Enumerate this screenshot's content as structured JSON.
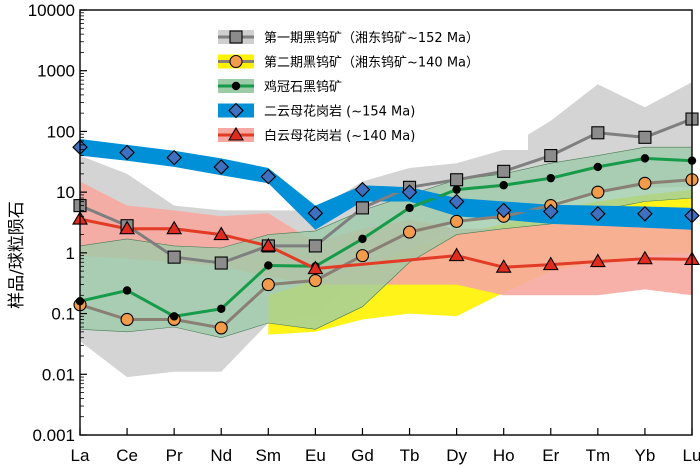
{
  "chart_data": {
    "type": "line",
    "ylabel": "样品/球粒陨石",
    "y_scale": "log",
    "ylim": [
      0.001,
      10000
    ],
    "y_ticks": [
      "0.001",
      "0.01",
      "0.1",
      "1",
      "10",
      "100",
      "1000",
      "10000"
    ],
    "y_tick_values": [
      0.001,
      0.01,
      0.1,
      1,
      10,
      100,
      1000,
      10000
    ],
    "categories": [
      "La",
      "Ce",
      "Pr",
      "Nd",
      "Sm",
      "Eu",
      "Gd",
      "Tb",
      "Dy",
      "Ho",
      "Er",
      "Tm",
      "Yb",
      "Lu"
    ],
    "legend_position": "top-center",
    "bands": [
      {
        "id": "grey",
        "color": "#cfcfcf",
        "lower": [
          0.035,
          0.009,
          0.011,
          0.011,
          0.07,
          0.09,
          0.6,
          1.0,
          3.5,
          5,
          7,
          10,
          12,
          12
        ],
        "upper": [
          40,
          20,
          6,
          5,
          5,
          5,
          15,
          25,
          30,
          50,
          150,
          600,
          250,
          650
        ]
      },
      {
        "id": "yellow",
        "color": "#fff200",
        "lower": [
          null,
          null,
          null,
          null,
          0.045,
          0.05,
          0.08,
          0.1,
          0.09,
          0.22,
          0.5,
          0.7,
          0.9,
          1.0
        ],
        "upper": [
          null,
          null,
          null,
          null,
          0.2,
          0.35,
          0.6,
          1.2,
          2,
          3,
          5,
          7,
          9,
          11
        ]
      },
      {
        "id": "red",
        "color": "#f7a8a0",
        "lower": [
          0.9,
          0.8,
          0.7,
          0.6,
          0.4,
          0.3,
          0.3,
          0.3,
          0.3,
          0.2,
          0.2,
          0.2,
          0.25,
          0.2
        ],
        "upper": [
          15,
          6,
          5,
          4,
          4.5,
          1.5,
          2.5,
          3.5,
          2.5,
          2.5,
          3,
          3.5,
          3,
          3
        ]
      },
      {
        "id": "green",
        "color": "#9ccba8",
        "lower": [
          0.055,
          0.05,
          0.06,
          0.04,
          0.07,
          0.055,
          0.13,
          0.7,
          2,
          2.5,
          3,
          5,
          7,
          8
        ],
        "upper": [
          1.3,
          1.7,
          1.3,
          1.2,
          2.0,
          2.3,
          5,
          9,
          16,
          20,
          30,
          40,
          55,
          55
        ]
      },
      {
        "id": "blue",
        "color": "#0090d8",
        "lower": [
          40,
          33,
          26,
          19,
          14,
          2.4,
          7,
          7,
          4,
          3.5,
          3,
          2.8,
          2.6,
          2.4
        ],
        "upper": [
          75,
          60,
          48,
          36,
          25,
          6,
          13,
          12,
          8,
          7,
          6.2,
          6,
          5.8,
          5.5
        ]
      }
    ],
    "series": [
      {
        "name": "第一期黑钨矿（湘东钨矿~152 Ma）",
        "marker": "square",
        "line_color": "#7f7f7f",
        "marker_fill": "#8c8c8c",
        "values": [
          6,
          2.8,
          0.85,
          0.68,
          1.3,
          1.3,
          5.5,
          12,
          16,
          22,
          40,
          95,
          80,
          160
        ]
      },
      {
        "name": "第二期黑钨矿（湘东钨矿~140 Ma）",
        "marker": "circle",
        "line_color": "#8a7f73",
        "marker_fill": "#f29b4a",
        "values": [
          0.14,
          0.08,
          0.08,
          0.058,
          0.3,
          0.35,
          0.9,
          2.2,
          3.3,
          4,
          6,
          10,
          14,
          16
        ]
      },
      {
        "name": "鸡冠石黑钨矿",
        "marker": "dot",
        "line_color": "#169b4a",
        "marker_fill": "#000000",
        "values": [
          0.16,
          0.24,
          0.09,
          0.12,
          0.62,
          0.6,
          1.7,
          5.5,
          11,
          13,
          17,
          26,
          36,
          33
        ]
      },
      {
        "name": "二云母花岗岩 (~154 Ma)",
        "marker": "diamond",
        "line_color": "#0090d8",
        "marker_fill": "#3f6fbf",
        "values": [
          55,
          45,
          37,
          26,
          18,
          4.5,
          11,
          10,
          7,
          5,
          4.8,
          4.4,
          4.4,
          4.1
        ]
      },
      {
        "name": "白云母花岗岩 (~140 Ma)",
        "marker": "triangle",
        "line_color": "#e23b26",
        "marker_fill": "#e22b1f",
        "values": [
          3.6,
          2.5,
          2.5,
          2.0,
          1.3,
          0.55,
          null,
          null,
          0.9,
          0.58,
          0.64,
          0.72,
          0.8,
          0.78
        ]
      }
    ],
    "colors": {
      "axis": "#000000",
      "legend_bg": "#ffffff"
    }
  }
}
